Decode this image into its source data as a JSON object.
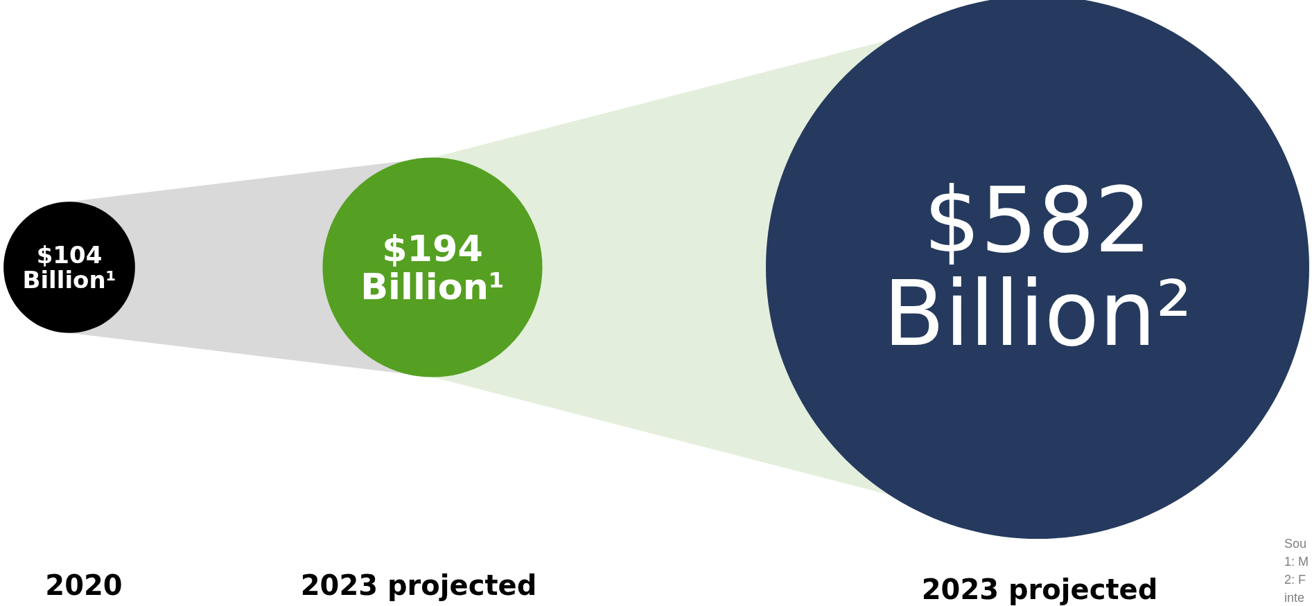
{
  "chart_data": {
    "type": "other",
    "categories": [
      "2020",
      "2023 projected",
      "2023 projected"
    ],
    "values": [
      104,
      194,
      582
    ],
    "value_labels": [
      "$104 Billion¹",
      "$194 Billion¹",
      "$582 Billion²"
    ],
    "colors": [
      "#000000",
      "#55a022",
      "#253a5e"
    ],
    "annotations": [
      "Sou",
      "1: M",
      "2: F",
      "inte"
    ]
  }
}
